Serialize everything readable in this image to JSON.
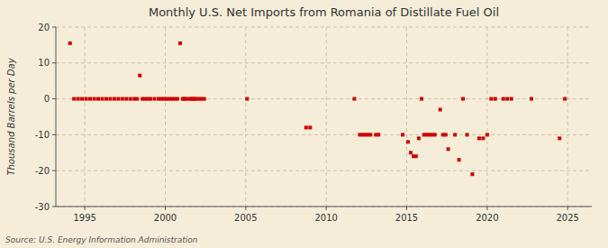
{
  "chart_data": {
    "type": "scatter",
    "title": "Monthly U.S. Net Imports from Romania of Distillate Fuel Oil",
    "ylabel": "Thousand Barrels per Day",
    "annotations": [
      "Source: U.S. Energy Information Administration"
    ],
    "xlim": [
      1993.2,
      2026.5
    ],
    "ylim": [
      -30,
      20
    ],
    "xticks": [
      1995,
      2000,
      2005,
      2010,
      2015,
      2020,
      2025
    ],
    "yticks": [
      -30,
      -20,
      -10,
      0,
      10,
      20
    ],
    "grid": true,
    "color": "#cc0000",
    "marker": "square",
    "x": [
      1994.08,
      1994.33,
      1994.58,
      1994.83,
      1995.08,
      1995.33,
      1995.58,
      1995.83,
      1996.08,
      1996.33,
      1996.58,
      1996.83,
      1997.08,
      1997.33,
      1997.58,
      1997.83,
      1998.08,
      1998.25,
      1998.42,
      1998.58,
      1998.75,
      1998.92,
      1999.08,
      1999.33,
      1999.58,
      1999.75,
      1999.92,
      2000.08,
      2000.25,
      2000.42,
      2000.58,
      2000.75,
      2000.92,
      2001.08,
      2001.17,
      2001.25,
      2001.42,
      2001.58,
      2001.67,
      2001.75,
      2001.83,
      2001.92,
      2002.08,
      2002.25,
      2002.42,
      2005.08,
      2008.75,
      2009.0,
      2011.75,
      2012.08,
      2012.25,
      2012.42,
      2012.58,
      2012.75,
      2013.08,
      2013.25,
      2014.75,
      2015.08,
      2015.25,
      2015.42,
      2015.58,
      2015.75,
      2015.92,
      2016.08,
      2016.25,
      2016.42,
      2016.58,
      2016.75,
      2017.08,
      2017.25,
      2017.42,
      2017.58,
      2018.0,
      2018.25,
      2018.5,
      2018.75,
      2019.08,
      2019.5,
      2019.75,
      2020.0,
      2020.25,
      2020.5,
      2021.0,
      2021.25,
      2021.5,
      2022.75,
      2024.5,
      2024.83
    ],
    "values": [
      15.5,
      0,
      0,
      0,
      0,
      0,
      0,
      0,
      0,
      0,
      0,
      0,
      0,
      0,
      0,
      0,
      0,
      0,
      6.5,
      0,
      0,
      0,
      0,
      0,
      0,
      0,
      0,
      0,
      0,
      0,
      0,
      0,
      15.5,
      0,
      0,
      0,
      0,
      0,
      0,
      0,
      0,
      0,
      0,
      0,
      0,
      0,
      -8,
      -8,
      0,
      -10,
      -10,
      -10,
      -10,
      -10,
      -10,
      -10,
      -10,
      -12,
      -15,
      -16,
      -16,
      -11,
      0,
      -10,
      -10,
      -10,
      -10,
      -10,
      -3,
      -10,
      -10,
      -14,
      -10,
      -17,
      0,
      -10,
      -21,
      -11,
      -11,
      -10,
      0,
      0,
      0,
      0,
      0,
      0,
      -11,
      0
    ]
  }
}
